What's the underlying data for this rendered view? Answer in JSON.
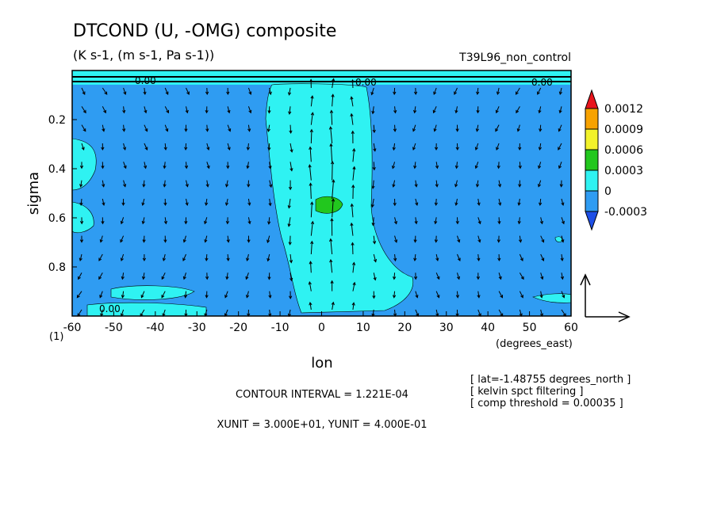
{
  "chart_data": {
    "type": "heatmap",
    "title": "DTCOND (U, -OMG) composite",
    "subtitle": "(K s-1, (m s-1, Pa s-1))",
    "run_label": "T39L96_non_control",
    "xlabel": "lon",
    "x_units": "(degrees_east)",
    "ylabel": "sigma",
    "xlim": [
      -60,
      60
    ],
    "ylim": [
      1.0,
      0.0
    ],
    "x_ticks": [
      -60,
      -50,
      -40,
      -30,
      -20,
      -10,
      0,
      10,
      20,
      30,
      40,
      50,
      60
    ],
    "x_tick_labels": [
      "-60",
      "-50",
      "-40",
      "-30",
      "-20",
      "-10",
      "0",
      "10",
      "20",
      "30",
      "40",
      "50",
      "60"
    ],
    "y_ticks": [
      0.2,
      0.4,
      0.6,
      0.8
    ],
    "y_tick_labels": [
      "0.2",
      "0.4",
      "0.6",
      "0.8"
    ],
    "corner_label": "(1)",
    "contour_labels": [
      "0.00",
      "0.00",
      "0.00",
      "0.00"
    ],
    "colorbar": {
      "levels": [
        "0.0012",
        "0.0009",
        "0.0006",
        "0.0003",
        "0",
        "-0.0003"
      ],
      "colors": [
        "#e8141c",
        "#f7a200",
        "#f2f22a",
        "#22c71e",
        "#2ff2f2",
        "#2f9cf2",
        "#1e4fe6"
      ]
    },
    "contour_interval_text": "CONTOUR INTERVAL = 1.221E-04",
    "units_text": "XUNIT = 3.000E+01, YUNIT = 4.000E-01",
    "notes": [
      "[ lat=-1.48755 degrees_north ]",
      "[ kelvin spct filtering ]",
      "[ comp threshold = 0.00035 ]"
    ],
    "colors": {
      "negative": "#2f9cf2",
      "near_zero": "#2ff2f2",
      "positive": "#22c71e"
    }
  }
}
